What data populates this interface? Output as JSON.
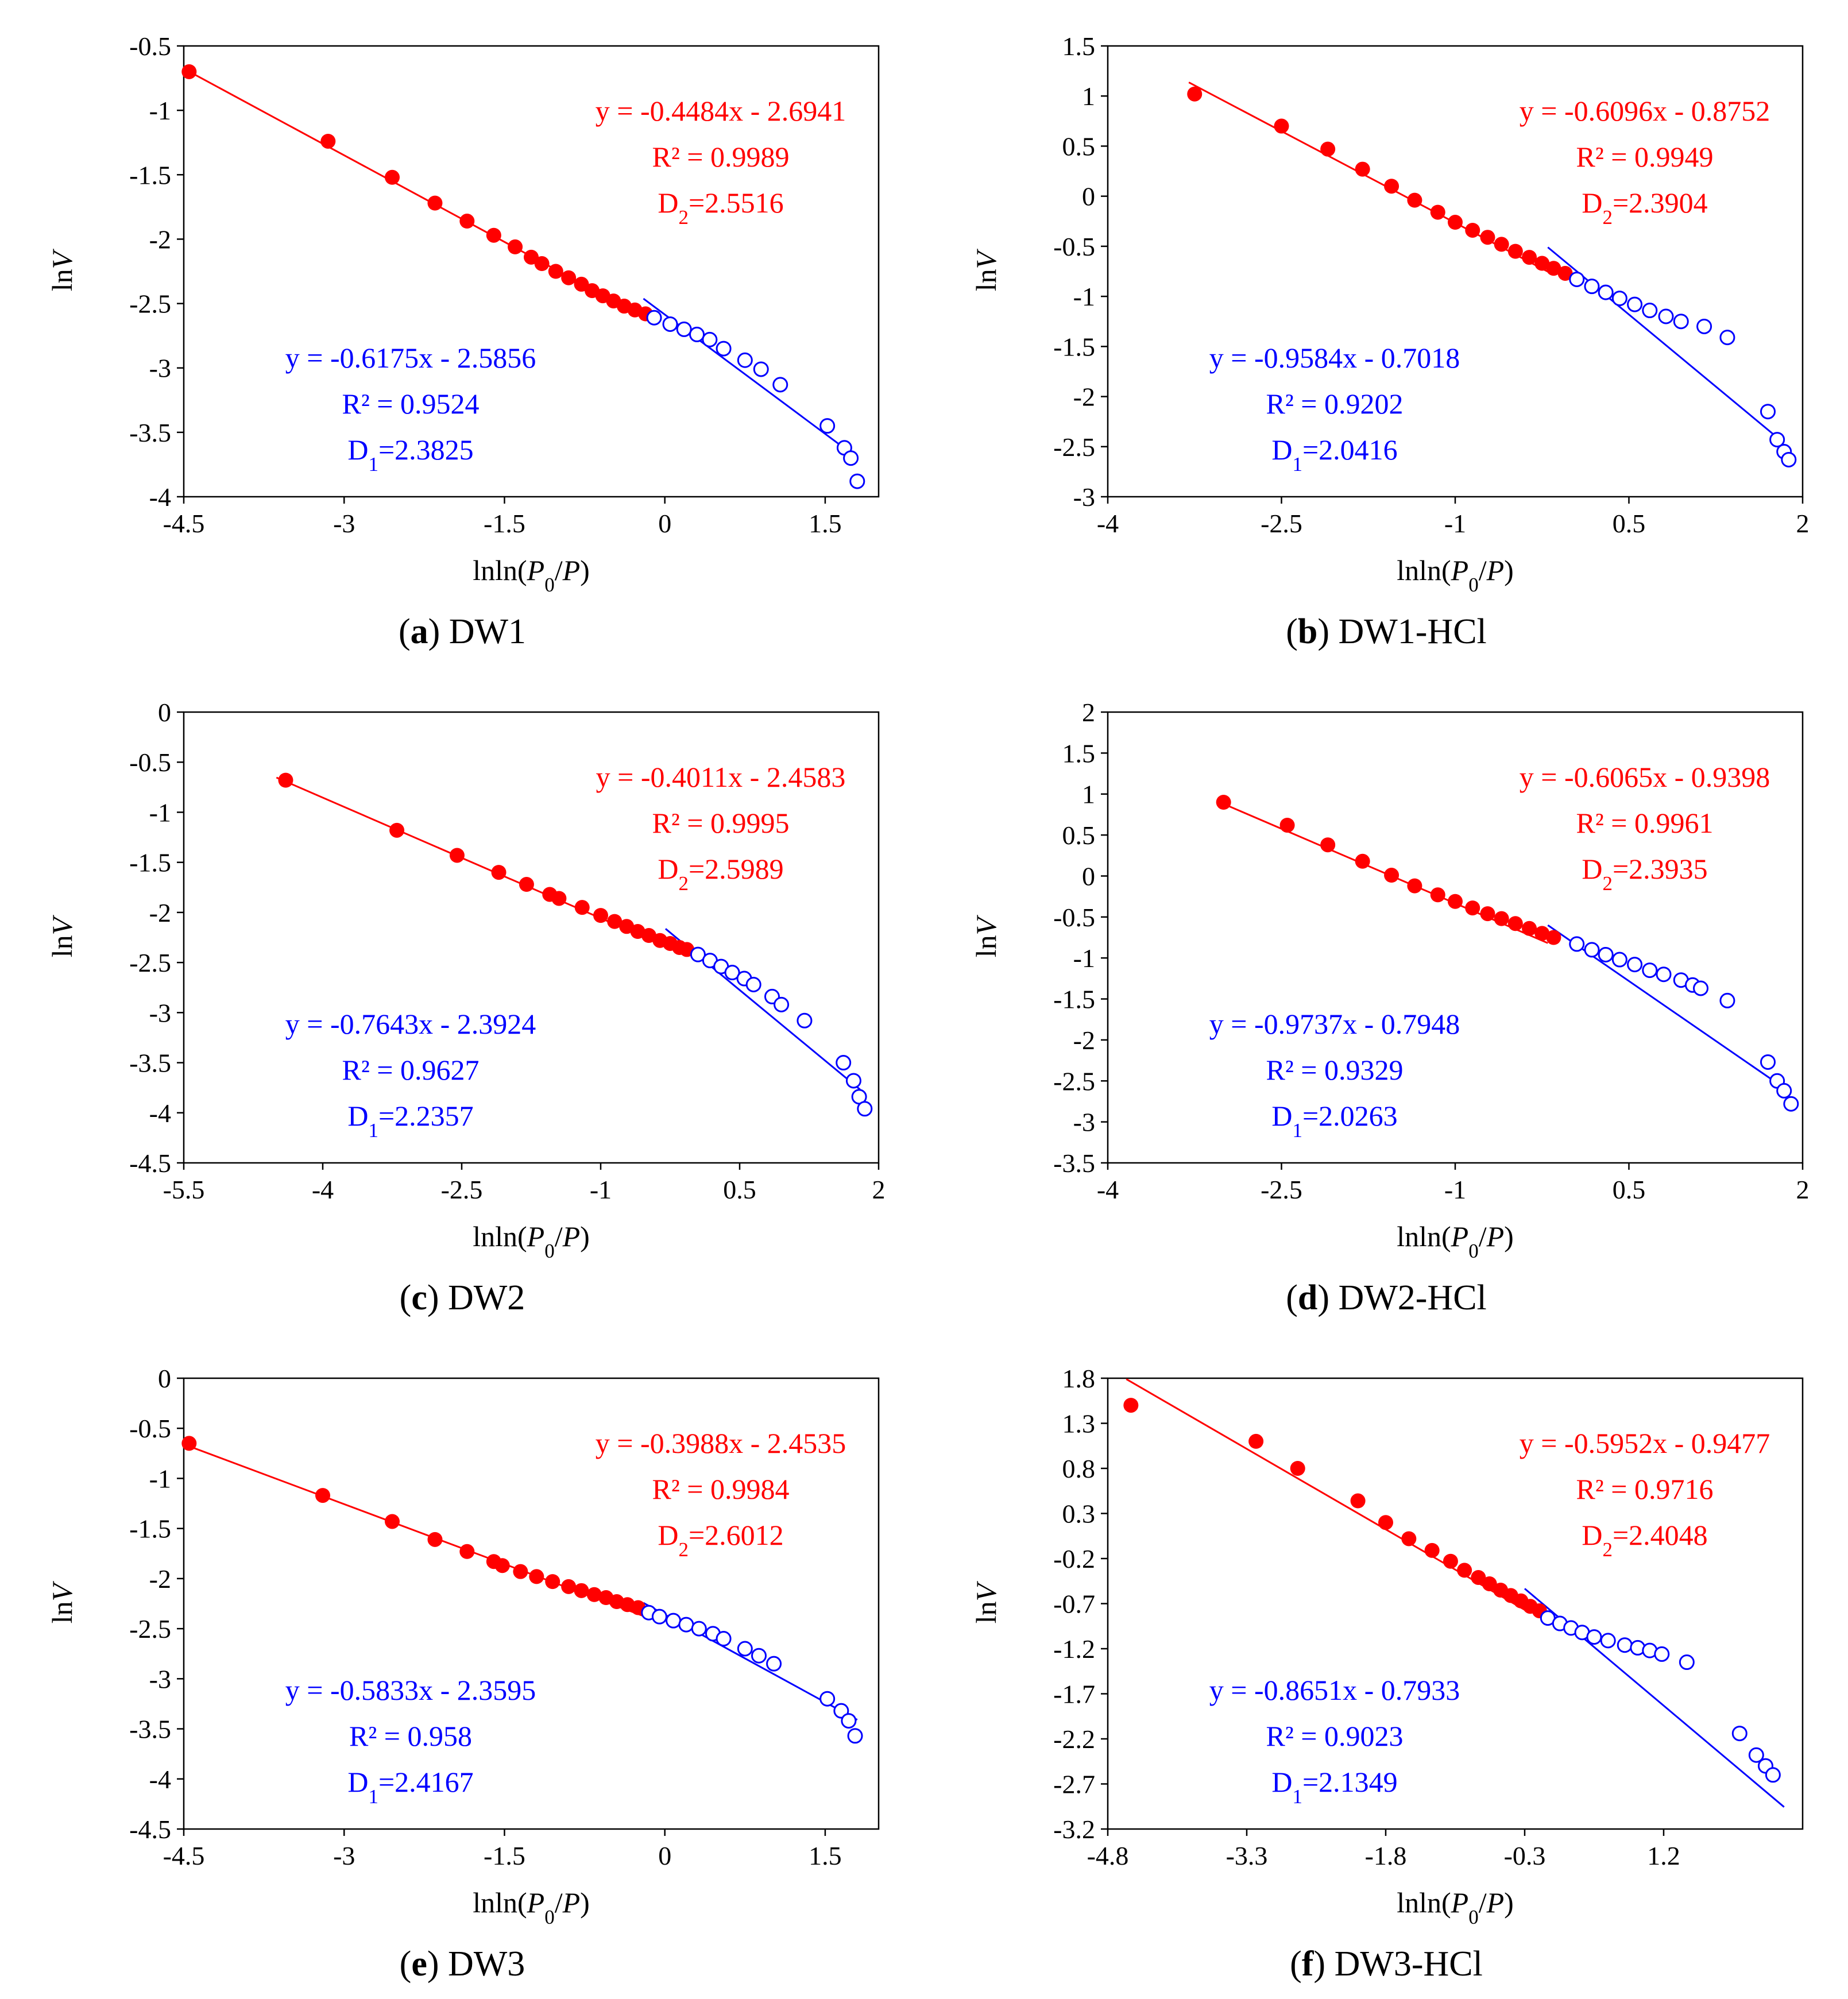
{
  "figure": {
    "colors": {
      "d2": "#ff0000",
      "d1": "#0000ff",
      "axis": "#000000"
    }
  },
  "chart_data": [
    {
      "type": "scatter",
      "caption_letter": "a",
      "caption_name": "DW1",
      "xlabel": "lnln(P0/P)",
      "ylabel": "lnV",
      "xlim": [
        -4.5,
        2.0
      ],
      "ylim": [
        -4.0,
        -0.5
      ],
      "x_ticks": [
        -4.5,
        -3,
        -1.5,
        0,
        1.5
      ],
      "x_tick_labels": [
        "-4.5",
        "-3",
        "-1.5",
        "0",
        "1.5"
      ],
      "y_ticks": [
        -4,
        -3.5,
        -3,
        -2.5,
        -2,
        -1.5,
        -1,
        -0.5
      ],
      "y_tick_labels": [
        "-4",
        "-3.5",
        "-3",
        "-2.5",
        "-2",
        "-1.5",
        "-1",
        "-0.5"
      ],
      "red_fit": {
        "slope": -0.4484,
        "intercept": -2.6941,
        "x_range": [
          -4.5,
          -0.2
        ]
      },
      "blue_fit": {
        "slope": -0.6175,
        "intercept": -2.5856,
        "x_range": [
          -0.2,
          1.8
        ]
      },
      "red_eq": "y = -0.4484x - 2.6941",
      "red_r2": "R² = 0.9989",
      "red_d": "D2=2.5516",
      "blue_eq": "y = -0.6175x - 2.5856",
      "blue_r2": "R² = 0.9524",
      "blue_d": "D1=2.3825",
      "red_points": [
        [
          -4.45,
          -0.7
        ],
        [
          -3.15,
          -1.24
        ],
        [
          -2.55,
          -1.52
        ],
        [
          -2.15,
          -1.72
        ],
        [
          -1.85,
          -1.86
        ],
        [
          -1.6,
          -1.97
        ],
        [
          -1.4,
          -2.06
        ],
        [
          -1.25,
          -2.14
        ],
        [
          -1.15,
          -2.19
        ],
        [
          -1.02,
          -2.25
        ],
        [
          -0.9,
          -2.3
        ],
        [
          -0.78,
          -2.35
        ],
        [
          -0.68,
          -2.4
        ],
        [
          -0.58,
          -2.44
        ],
        [
          -0.48,
          -2.48
        ],
        [
          -0.38,
          -2.52
        ],
        [
          -0.28,
          -2.55
        ],
        [
          -0.18,
          -2.58
        ]
      ],
      "blue_points": [
        [
          -0.1,
          -2.61
        ],
        [
          0.05,
          -2.66
        ],
        [
          0.18,
          -2.7
        ],
        [
          0.3,
          -2.74
        ],
        [
          0.42,
          -2.78
        ],
        [
          0.55,
          -2.85
        ],
        [
          0.75,
          -2.94
        ],
        [
          0.9,
          -3.01
        ],
        [
          1.08,
          -3.13
        ],
        [
          1.52,
          -3.45
        ],
        [
          1.68,
          -3.62
        ],
        [
          1.74,
          -3.7
        ],
        [
          1.8,
          -3.88
        ]
      ]
    },
    {
      "type": "scatter",
      "caption_letter": "b",
      "caption_name": "DW1-HCl",
      "xlabel": "lnln(P0/P)",
      "ylabel": "lnV",
      "xlim": [
        -4.0,
        2.0
      ],
      "ylim": [
        -3.0,
        1.5
      ],
      "x_ticks": [
        -4,
        -2.5,
        -1,
        0.5,
        2
      ],
      "x_tick_labels": [
        "-4",
        "-2.5",
        "-1",
        "0.5",
        "2"
      ],
      "y_ticks": [
        -3,
        -2.5,
        -2,
        -1.5,
        -1,
        -0.5,
        0,
        0.5,
        1,
        1.5
      ],
      "y_tick_labels": [
        "-3",
        "-2.5",
        "-2",
        "-1.5",
        "-1",
        "-0.5",
        "0",
        "0.5",
        "1",
        "1.5"
      ],
      "red_fit": {
        "slope": -0.6096,
        "intercept": -0.8752,
        "x_range": [
          -3.3,
          -0.2
        ]
      },
      "blue_fit": {
        "slope": -0.9584,
        "intercept": -0.7018,
        "x_range": [
          -0.2,
          1.8
        ]
      },
      "red_eq": "y = -0.6096x - 0.8752",
      "red_r2": "R² = 0.9949",
      "red_d": "D2=2.3904",
      "blue_eq": "y = -0.9584x - 0.7018",
      "blue_r2": "R² = 0.9202",
      "blue_d": "D1=2.0416",
      "red_points": [
        [
          -3.25,
          1.02
        ],
        [
          -2.5,
          0.7
        ],
        [
          -2.1,
          0.47
        ],
        [
          -1.8,
          0.27
        ],
        [
          -1.55,
          0.1
        ],
        [
          -1.35,
          -0.04
        ],
        [
          -1.15,
          -0.16
        ],
        [
          -1.0,
          -0.26
        ],
        [
          -0.85,
          -0.34
        ],
        [
          -0.72,
          -0.41
        ],
        [
          -0.6,
          -0.48
        ],
        [
          -0.48,
          -0.55
        ],
        [
          -0.36,
          -0.61
        ],
        [
          -0.25,
          -0.67
        ],
        [
          -0.15,
          -0.72
        ],
        [
          -0.05,
          -0.77
        ]
      ],
      "blue_points": [
        [
          0.05,
          -0.83
        ],
        [
          0.18,
          -0.9
        ],
        [
          0.3,
          -0.96
        ],
        [
          0.42,
          -1.02
        ],
        [
          0.55,
          -1.08
        ],
        [
          0.68,
          -1.14
        ],
        [
          0.82,
          -1.2
        ],
        [
          0.95,
          -1.25
        ],
        [
          1.15,
          -1.3
        ],
        [
          1.35,
          -1.41
        ],
        [
          1.7,
          -2.15
        ],
        [
          1.78,
          -2.43
        ],
        [
          1.84,
          -2.55
        ],
        [
          1.88,
          -2.63
        ]
      ]
    },
    {
      "type": "scatter",
      "caption_letter": "c",
      "caption_name": "DW2",
      "xlabel": "lnln(P0/P)",
      "ylabel": "lnV",
      "xlim": [
        -5.5,
        2.0
      ],
      "ylim": [
        -4.5,
        0.0
      ],
      "x_ticks": [
        -5.5,
        -4,
        -2.5,
        -1,
        0.5,
        2
      ],
      "x_tick_labels": [
        "-5.5",
        "-4",
        "-2.5",
        "-1",
        "0.5",
        "2"
      ],
      "y_ticks": [
        -4.5,
        -4,
        -3.5,
        -3,
        -2.5,
        -2,
        -1.5,
        -1,
        -0.5,
        0
      ],
      "y_tick_labels": [
        "-4.5",
        "-4",
        "-3.5",
        "-3",
        "-2.5",
        "-2",
        "-1.5",
        "-1",
        "-0.5",
        "0"
      ],
      "red_fit": {
        "slope": -0.4011,
        "intercept": -2.4583,
        "x_range": [
          -4.5,
          -0.3
        ]
      },
      "blue_fit": {
        "slope": -0.7643,
        "intercept": -2.3924,
        "x_range": [
          -0.3,
          1.8
        ]
      },
      "red_eq": "y = -0.4011x - 2.4583",
      "red_r2": "R² = 0.9995",
      "red_d": "D2=2.5989",
      "blue_eq": "y = -0.7643x - 2.3924",
      "blue_r2": "R² = 0.9627",
      "blue_d": "D1=2.2357",
      "red_points": [
        [
          -4.4,
          -0.68
        ],
        [
          -3.2,
          -1.18
        ],
        [
          -2.55,
          -1.43
        ],
        [
          -2.1,
          -1.6
        ],
        [
          -1.8,
          -1.72
        ],
        [
          -1.55,
          -1.82
        ],
        [
          -1.45,
          -1.86
        ],
        [
          -1.2,
          -1.95
        ],
        [
          -1.0,
          -2.03
        ],
        [
          -0.85,
          -2.09
        ],
        [
          -0.72,
          -2.14
        ],
        [
          -0.6,
          -2.19
        ],
        [
          -0.48,
          -2.23
        ],
        [
          -0.36,
          -2.28
        ],
        [
          -0.25,
          -2.31
        ],
        [
          -0.15,
          -2.35
        ],
        [
          -0.07,
          -2.37
        ]
      ],
      "blue_points": [
        [
          0.05,
          -2.42
        ],
        [
          0.18,
          -2.48
        ],
        [
          0.3,
          -2.54
        ],
        [
          0.42,
          -2.6
        ],
        [
          0.55,
          -2.66
        ],
        [
          0.65,
          -2.72
        ],
        [
          0.85,
          -2.84
        ],
        [
          0.95,
          -2.92
        ],
        [
          1.2,
          -3.08
        ],
        [
          1.62,
          -3.5
        ],
        [
          1.73,
          -3.68
        ],
        [
          1.79,
          -3.84
        ],
        [
          1.85,
          -3.96
        ]
      ]
    },
    {
      "type": "scatter",
      "caption_letter": "d",
      "caption_name": "DW2-HCl",
      "xlabel": "lnln(P0/P)",
      "ylabel": "lnV",
      "xlim": [
        -4.0,
        2.0
      ],
      "ylim": [
        -3.5,
        2.0
      ],
      "x_ticks": [
        -4,
        -2.5,
        -1,
        0.5,
        2
      ],
      "x_tick_labels": [
        "-4",
        "-2.5",
        "-1",
        "0.5",
        "2"
      ],
      "y_ticks": [
        -3.5,
        -3,
        -2.5,
        -2,
        -1.5,
        -1,
        -0.5,
        0,
        0.5,
        1,
        1.5,
        2
      ],
      "y_tick_labels": [
        "-3.5",
        "-3",
        "-2.5",
        "-2",
        "-1.5",
        "-1",
        "-0.5",
        "0",
        "0.5",
        "1",
        "1.5",
        "2"
      ],
      "red_fit": {
        "slope": -0.6065,
        "intercept": -0.9398,
        "x_range": [
          -3.0,
          -0.2
        ]
      },
      "blue_fit": {
        "slope": -0.9737,
        "intercept": -0.7948,
        "x_range": [
          -0.2,
          1.8
        ]
      },
      "red_eq": "y = -0.6065x - 0.9398",
      "red_r2": "R² = 0.9961",
      "red_d": "D2=2.3935",
      "blue_eq": "y = -0.9737x - 0.7948",
      "blue_r2": "R² = 0.9329",
      "blue_d": "D1=2.0263",
      "red_points": [
        [
          -3.0,
          0.9
        ],
        [
          -2.45,
          0.62
        ],
        [
          -2.1,
          0.38
        ],
        [
          -1.8,
          0.18
        ],
        [
          -1.55,
          0.01
        ],
        [
          -1.35,
          -0.12
        ],
        [
          -1.15,
          -0.23
        ],
        [
          -1.0,
          -0.31
        ],
        [
          -0.85,
          -0.39
        ],
        [
          -0.72,
          -0.46
        ],
        [
          -0.6,
          -0.52
        ],
        [
          -0.48,
          -0.58
        ],
        [
          -0.36,
          -0.64
        ],
        [
          -0.25,
          -0.7
        ],
        [
          -0.15,
          -0.75
        ]
      ],
      "blue_points": [
        [
          0.05,
          -0.83
        ],
        [
          0.18,
          -0.9
        ],
        [
          0.3,
          -0.96
        ],
        [
          0.42,
          -1.02
        ],
        [
          0.55,
          -1.08
        ],
        [
          0.68,
          -1.15
        ],
        [
          0.8,
          -1.2
        ],
        [
          0.95,
          -1.27
        ],
        [
          1.05,
          -1.33
        ],
        [
          1.12,
          -1.37
        ],
        [
          1.35,
          -1.52
        ],
        [
          1.7,
          -2.27
        ],
        [
          1.78,
          -2.5
        ],
        [
          1.84,
          -2.62
        ],
        [
          1.9,
          -2.78
        ]
      ]
    },
    {
      "type": "scatter",
      "caption_letter": "e",
      "caption_name": "DW3",
      "xlabel": "lnln(P0/P)",
      "ylabel": "lnV",
      "xlim": [
        -4.5,
        2.0
      ],
      "ylim": [
        -4.5,
        0.0
      ],
      "x_ticks": [
        -4.5,
        -3,
        -1.5,
        0,
        1.5
      ],
      "x_tick_labels": [
        "-4.5",
        "-3",
        "-1.5",
        "0",
        "1.5"
      ],
      "y_ticks": [
        -4.5,
        -4,
        -3.5,
        -3,
        -2.5,
        -2,
        -1.5,
        -1,
        -0.5,
        0
      ],
      "y_tick_labels": [
        "-4.5",
        "-4",
        "-3.5",
        "-3",
        "-2.5",
        "-2",
        "-1.5",
        "-1",
        "-0.5",
        "0"
      ],
      "red_fit": {
        "slope": -0.3988,
        "intercept": -2.4535,
        "x_range": [
          -4.5,
          -0.2
        ]
      },
      "blue_fit": {
        "slope": -0.5833,
        "intercept": -2.3595,
        "x_range": [
          -0.2,
          1.8
        ]
      },
      "red_eq": "y = -0.3988x - 2.4535",
      "red_r2": "R² = 0.9984",
      "red_d": "D2=2.6012",
      "blue_eq": "y = -0.5833x - 2.3595",
      "blue_r2": "R² = 0.958",
      "blue_d": "D1=2.4167",
      "red_points": [
        [
          -4.45,
          -0.65
        ],
        [
          -3.2,
          -1.17
        ],
        [
          -2.55,
          -1.43
        ],
        [
          -2.15,
          -1.61
        ],
        [
          -1.85,
          -1.73
        ],
        [
          -1.6,
          -1.83
        ],
        [
          -1.52,
          -1.87
        ],
        [
          -1.35,
          -1.93
        ],
        [
          -1.2,
          -1.98
        ],
        [
          -1.05,
          -2.03
        ],
        [
          -0.9,
          -2.08
        ],
        [
          -0.78,
          -2.12
        ],
        [
          -0.66,
          -2.16
        ],
        [
          -0.55,
          -2.19
        ],
        [
          -0.45,
          -2.23
        ],
        [
          -0.35,
          -2.26
        ],
        [
          -0.25,
          -2.29
        ]
      ],
      "blue_points": [
        [
          -0.15,
          -2.34
        ],
        [
          -0.05,
          -2.38
        ],
        [
          0.08,
          -2.42
        ],
        [
          0.2,
          -2.46
        ],
        [
          0.32,
          -2.5
        ],
        [
          0.45,
          -2.55
        ],
        [
          0.55,
          -2.6
        ],
        [
          0.75,
          -2.7
        ],
        [
          0.88,
          -2.77
        ],
        [
          1.02,
          -2.85
        ],
        [
          1.52,
          -3.2
        ],
        [
          1.65,
          -3.32
        ],
        [
          1.72,
          -3.42
        ],
        [
          1.78,
          -3.57
        ]
      ]
    },
    {
      "type": "scatter",
      "caption_letter": "f",
      "caption_name": "DW3-HCl",
      "xlabel": "lnln(P0/P)",
      "ylabel": "lnV",
      "xlim": [
        -4.8,
        2.7
      ],
      "ylim": [
        -3.2,
        1.8
      ],
      "x_ticks": [
        -4.8,
        -3.3,
        -1.8,
        -0.3,
        1.2
      ],
      "x_tick_labels": [
        "-4.8",
        "-3.3",
        "-1.8",
        "-0.3",
        "1.2"
      ],
      "y_ticks": [
        -3.2,
        -2.7,
        -2.2,
        -1.7,
        -1.2,
        -0.7,
        -0.2,
        0.3,
        0.8,
        1.3,
        1.8
      ],
      "y_tick_labels": [
        "-3.2",
        "-2.7",
        "-2.2",
        "-1.7",
        "-1.2",
        "-0.7",
        "-0.2",
        "0.3",
        "0.8",
        "1.3",
        "1.8"
      ],
      "red_fit": {
        "slope": -0.5952,
        "intercept": -0.9477,
        "x_range": [
          -4.6,
          -0.3
        ]
      },
      "blue_fit": {
        "slope": -0.8651,
        "intercept": -0.7933,
        "x_range": [
          -0.3,
          2.5
        ]
      },
      "red_eq": "y = -0.5952x - 0.9477",
      "red_r2": "R² = 0.9716",
      "red_d": "D2=2.4048",
      "blue_eq": "y = -0.8651x - 0.7933",
      "blue_r2": "R² = 0.9023",
      "blue_d": "D1=2.1349",
      "red_points": [
        [
          -4.55,
          1.5
        ],
        [
          -3.2,
          1.1
        ],
        [
          -2.75,
          0.8
        ],
        [
          -2.1,
          0.44
        ],
        [
          -1.8,
          0.2
        ],
        [
          -1.55,
          0.02
        ],
        [
          -1.3,
          -0.11
        ],
        [
          -1.1,
          -0.23
        ],
        [
          -0.95,
          -0.33
        ],
        [
          -0.8,
          -0.41
        ],
        [
          -0.68,
          -0.48
        ],
        [
          -0.56,
          -0.55
        ],
        [
          -0.45,
          -0.61
        ],
        [
          -0.34,
          -0.67
        ],
        [
          -0.24,
          -0.73
        ],
        [
          -0.14,
          -0.78
        ]
      ],
      "blue_points": [
        [
          -0.05,
          -0.86
        ],
        [
          0.08,
          -0.92
        ],
        [
          0.2,
          -0.97
        ],
        [
          0.32,
          -1.02
        ],
        [
          0.45,
          -1.07
        ],
        [
          0.6,
          -1.11
        ],
        [
          0.78,
          -1.16
        ],
        [
          0.92,
          -1.19
        ],
        [
          1.05,
          -1.22
        ],
        [
          1.18,
          -1.26
        ],
        [
          1.45,
          -1.35
        ],
        [
          2.02,
          -2.14
        ],
        [
          2.2,
          -2.38
        ],
        [
          2.3,
          -2.5
        ],
        [
          2.38,
          -2.6
        ]
      ]
    }
  ]
}
